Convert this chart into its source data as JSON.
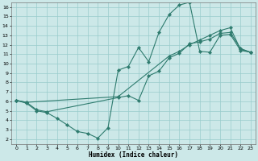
{
  "xlabel": "Humidex (Indice chaleur)",
  "bg_color": "#cce8e8",
  "grid_color": "#99cccc",
  "line_color": "#2e7b6e",
  "xlim": [
    -0.5,
    23.5
  ],
  "ylim": [
    1.5,
    16.5
  ],
  "xticks": [
    0,
    1,
    2,
    3,
    4,
    5,
    6,
    7,
    8,
    9,
    10,
    11,
    12,
    13,
    14,
    15,
    16,
    17,
    18,
    19,
    20,
    21,
    22,
    23
  ],
  "yticks": [
    2,
    3,
    4,
    5,
    6,
    7,
    8,
    9,
    10,
    11,
    12,
    13,
    14,
    15,
    16
  ],
  "line1_x": [
    0,
    1,
    2,
    3,
    4,
    5,
    6,
    7,
    8,
    9,
    10,
    11,
    12,
    13,
    14,
    15,
    16,
    17,
    18,
    19,
    20,
    21,
    22,
    23
  ],
  "line1_y": [
    6.1,
    5.8,
    5.0,
    4.8,
    4.2,
    3.5,
    2.8,
    2.6,
    2.1,
    3.2,
    9.3,
    9.7,
    11.7,
    10.2,
    13.3,
    15.2,
    16.2,
    16.5,
    11.3,
    11.2,
    13.0,
    13.1,
    11.4,
    11.2
  ],
  "line2_x": [
    0,
    1,
    10,
    15,
    16,
    17,
    18,
    19,
    20,
    21,
    22,
    23
  ],
  "line2_y": [
    6.1,
    5.9,
    6.5,
    10.8,
    11.3,
    12.0,
    12.5,
    13.0,
    13.5,
    13.8,
    11.5,
    11.2
  ],
  "line3_x": [
    0,
    1,
    2,
    3,
    10,
    11,
    12,
    13,
    14,
    15,
    16,
    17,
    18,
    19,
    20,
    21,
    22,
    23
  ],
  "line3_y": [
    6.1,
    5.9,
    5.1,
    4.9,
    6.4,
    6.6,
    6.1,
    8.7,
    9.2,
    10.6,
    11.1,
    12.1,
    12.3,
    12.6,
    13.2,
    13.3,
    11.6,
    11.2
  ]
}
